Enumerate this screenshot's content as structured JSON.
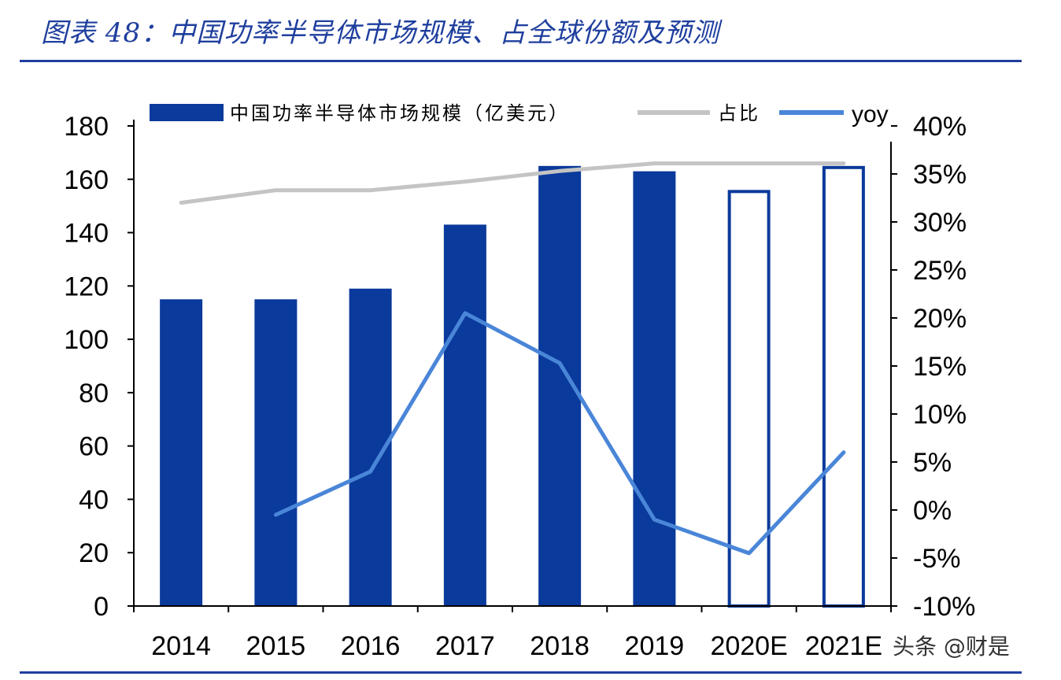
{
  "figure": {
    "title": "图表 48：中国功率半导体市场规模、占全球份额及预测",
    "watermark": "头条 @财是"
  },
  "colors": {
    "bar": "#0a3a9b",
    "share_line": "#c4c4c4",
    "yoy_line": "#4a86d8",
    "title": "#1f3f9e",
    "axis": "#000000"
  },
  "chart_data": {
    "type": "bar",
    "categories": [
      "2014",
      "2015",
      "2016",
      "2017",
      "2018",
      "2019",
      "2020E",
      "2021E"
    ],
    "series": [
      {
        "name": "中国功率半导体市场规模（亿美元）",
        "type": "bar",
        "axis": "left",
        "values": [
          115,
          115,
          119,
          143,
          165,
          163,
          156,
          165
        ],
        "forecast": [
          false,
          false,
          false,
          false,
          false,
          false,
          true,
          true
        ]
      },
      {
        "name": "占比",
        "type": "line",
        "axis": "right",
        "values": [
          0.32,
          0.333,
          0.333,
          0.342,
          0.353,
          0.361,
          0.361,
          0.361
        ]
      },
      {
        "name": "yoy",
        "type": "line",
        "axis": "right",
        "values": [
          null,
          -0.005,
          0.04,
          0.205,
          0.153,
          -0.01,
          -0.045,
          0.06
        ]
      }
    ],
    "y_left": {
      "min": 0,
      "max": 180,
      "step": 20,
      "ticks": [
        "0",
        "20",
        "40",
        "60",
        "80",
        "100",
        "120",
        "140",
        "160",
        "180"
      ]
    },
    "y_right": {
      "min": -0.1,
      "max": 0.4,
      "step": 0.05,
      "ticks": [
        "-10%",
        "-5%",
        "0%",
        "5%",
        "10%",
        "15%",
        "20%",
        "25%",
        "30%",
        "35%",
        "40%"
      ]
    },
    "xlabel": "",
    "ylabel": "",
    "legend_position": "top",
    "grid": false
  }
}
